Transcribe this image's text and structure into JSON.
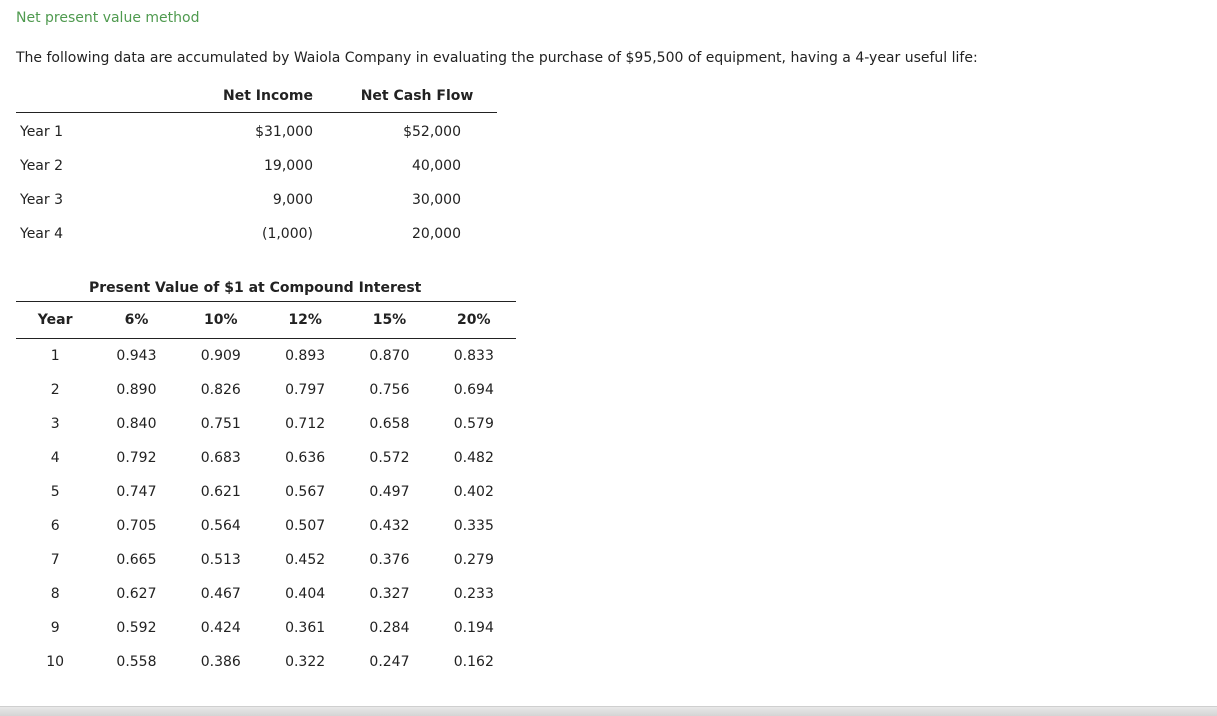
{
  "heading": "Net present value method",
  "intro": "The following data are accumulated by Waiola Company in evaluating the purchase of $95,500 of equipment, having a 4-year useful life:",
  "cash_flow_table": {
    "headers": [
      "",
      "Net Income",
      "Net Cash Flow"
    ],
    "rows": [
      {
        "label": "Year 1",
        "net_income": "$31,000",
        "net_cash_flow": "$52,000"
      },
      {
        "label": "Year 2",
        "net_income": "19,000",
        "net_cash_flow": "40,000"
      },
      {
        "label": "Year 3",
        "net_income": "9,000",
        "net_cash_flow": "30,000"
      },
      {
        "label": "Year 4",
        "net_income": "(1,000)",
        "net_cash_flow": "20,000"
      }
    ]
  },
  "pv_table": {
    "title": "Present Value of $1 at Compound Interest",
    "headers": [
      "Year",
      "6%",
      "10%",
      "12%",
      "15%",
      "20%"
    ],
    "rows": [
      [
        "1",
        "0.943",
        "0.909",
        "0.893",
        "0.870",
        "0.833"
      ],
      [
        "2",
        "0.890",
        "0.826",
        "0.797",
        "0.756",
        "0.694"
      ],
      [
        "3",
        "0.840",
        "0.751",
        "0.712",
        "0.658",
        "0.579"
      ],
      [
        "4",
        "0.792",
        "0.683",
        "0.636",
        "0.572",
        "0.482"
      ],
      [
        "5",
        "0.747",
        "0.621",
        "0.567",
        "0.497",
        "0.402"
      ],
      [
        "6",
        "0.705",
        "0.564",
        "0.507",
        "0.432",
        "0.335"
      ],
      [
        "7",
        "0.665",
        "0.513",
        "0.452",
        "0.376",
        "0.279"
      ],
      [
        "8",
        "0.627",
        "0.467",
        "0.404",
        "0.327",
        "0.233"
      ],
      [
        "9",
        "0.592",
        "0.424",
        "0.361",
        "0.284",
        "0.194"
      ],
      [
        "10",
        "0.558",
        "0.386",
        "0.322",
        "0.247",
        "0.162"
      ]
    ]
  },
  "colors": {
    "heading": "#4f9a4f",
    "text": "#222222"
  }
}
